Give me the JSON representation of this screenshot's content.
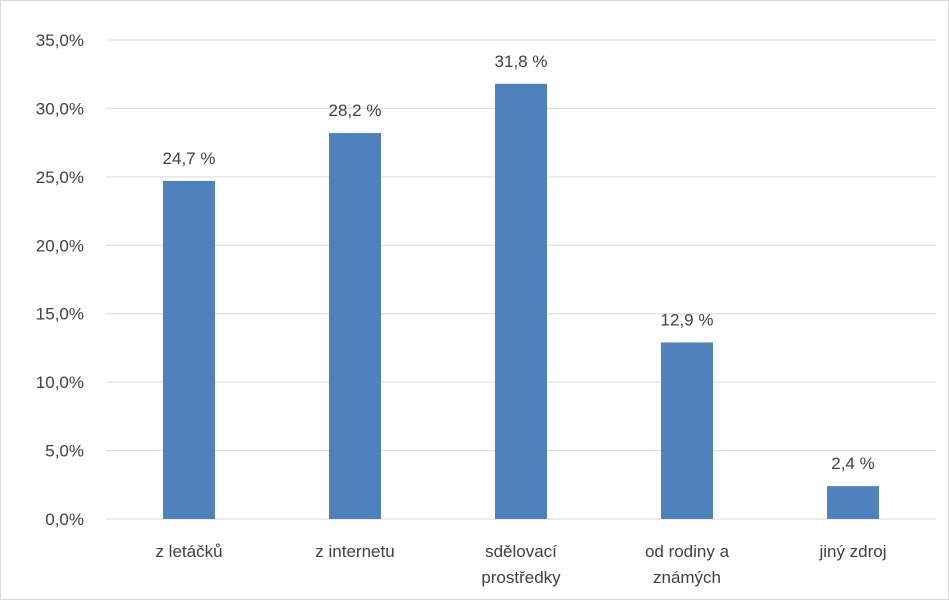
{
  "chart_data": {
    "type": "bar",
    "categories": [
      [
        "z letáčků"
      ],
      [
        "z internetu"
      ],
      [
        "sdělovací",
        "prostředky"
      ],
      [
        "od rodiny a",
        "známých"
      ],
      [
        "jiný zdroj"
      ]
    ],
    "values": [
      24.7,
      28.2,
      31.8,
      12.9,
      2.4
    ],
    "data_labels": [
      "24,7 %",
      "28,2 %",
      "31,8 %",
      "12,9 %",
      "2,4 %"
    ],
    "y_ticks": [
      0,
      5,
      10,
      15,
      20,
      25,
      30,
      35
    ],
    "y_tick_labels": [
      "0,0%",
      "5,0%",
      "10,0%",
      "15,0%",
      "20,0%",
      "25,0%",
      "30,0%",
      "35,0%"
    ],
    "ylim": [
      0,
      35
    ],
    "grid": true,
    "legend": "none",
    "bar_color": "#4f81bd",
    "grid_color": "#d9d9d9"
  }
}
